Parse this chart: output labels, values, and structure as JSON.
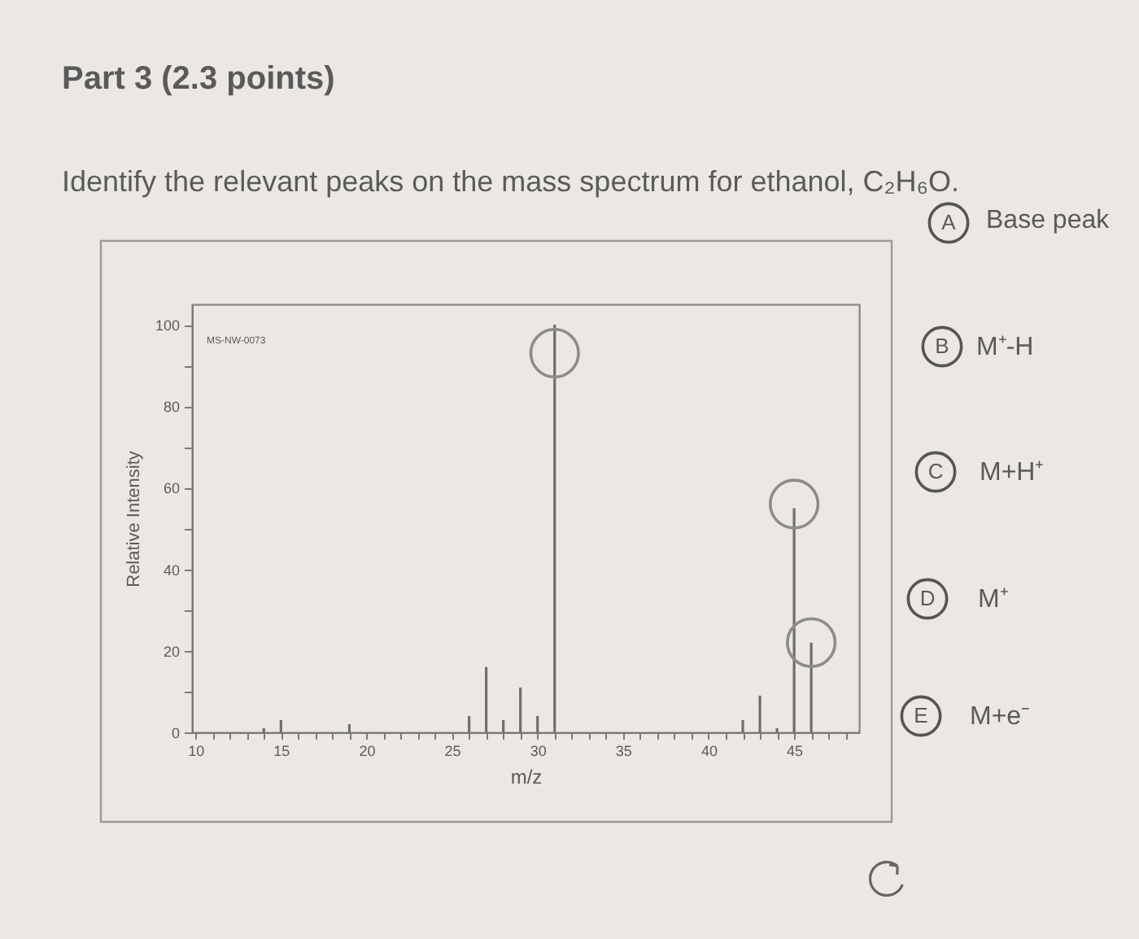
{
  "chart_data": {
    "type": "bar",
    "title": "Part 3 (2.3 points)",
    "subtitle": "Identify the relevant peaks on the mass spectrum for ethanol, C₂H₆O.",
    "xlabel": "m/z",
    "ylabel": "Relative Intensity",
    "xlim": [
      9.8,
      48.8
    ],
    "ylim": [
      0,
      105
    ],
    "xticks": [
      10,
      {
        "value": 11,
        "label": null
      },
      {
        "value": 12,
        "label": null
      },
      {
        "value": 13,
        "label": null
      },
      {
        "value": 14,
        "label": null
      },
      15,
      {
        "value": 16,
        "label": null
      },
      {
        "value": 17,
        "label": null
      },
      {
        "value": 18,
        "label": null
      },
      {
        "value": 19,
        "label": null
      },
      20,
      {
        "value": 21,
        "label": null
      },
      {
        "value": 22,
        "label": null
      },
      {
        "value": 23,
        "label": null
      },
      {
        "value": 24,
        "label": null
      },
      25,
      {
        "value": 26,
        "label": null
      },
      {
        "value": 27,
        "label": null
      },
      {
        "value": 28,
        "label": null
      },
      {
        "value": 29,
        "label": null
      },
      30,
      {
        "value": 31,
        "label": null
      },
      {
        "value": 32,
        "label": null
      },
      {
        "value": 33,
        "label": null
      },
      {
        "value": 34,
        "label": null
      },
      35,
      {
        "value": 36,
        "label": null
      },
      {
        "value": 37,
        "label": null
      },
      {
        "value": 38,
        "label": null
      },
      {
        "value": 39,
        "label": null
      },
      40,
      {
        "value": 41,
        "label": null
      },
      {
        "value": 42,
        "label": null
      },
      {
        "value": 43,
        "label": null
      },
      {
        "value": 44,
        "label": null
      },
      45,
      {
        "value": 46,
        "label": null
      },
      {
        "value": 47,
        "label": null
      },
      {
        "value": 48,
        "label": null
      }
    ],
    "yticks": [
      0,
      {
        "value": 10,
        "label": null
      },
      20,
      {
        "value": 30,
        "label": null
      },
      40,
      {
        "value": 50,
        "label": null
      },
      60,
      {
        "value": 70,
        "label": null
      },
      80,
      {
        "value": 90,
        "label": null
      },
      100
    ],
    "marker": "circle",
    "series": [
      {
        "color": "#6e6e6e",
        "x": [
          14,
          15,
          19,
          26,
          27,
          28,
          29,
          30,
          31,
          42,
          43,
          44,
          45,
          46
        ],
        "values": [
          1,
          3,
          2,
          4,
          16,
          3,
          11,
          4,
          100,
          3,
          9,
          1,
          55,
          22
        ]
      },
      {
        "type": "scatter",
        "color": "#8c8c8c",
        "x": [
          31,
          45,
          46
        ],
        "values": [
          93,
          56,
          22
        ]
      }
    ],
    "annotations": [
      "MS-NW-0073",
      "A",
      "Base peak",
      "B",
      "M⁺-H",
      "C",
      "M+H⁺",
      "D",
      "M⁺",
      "E",
      "M+e⁻"
    ]
  }
}
